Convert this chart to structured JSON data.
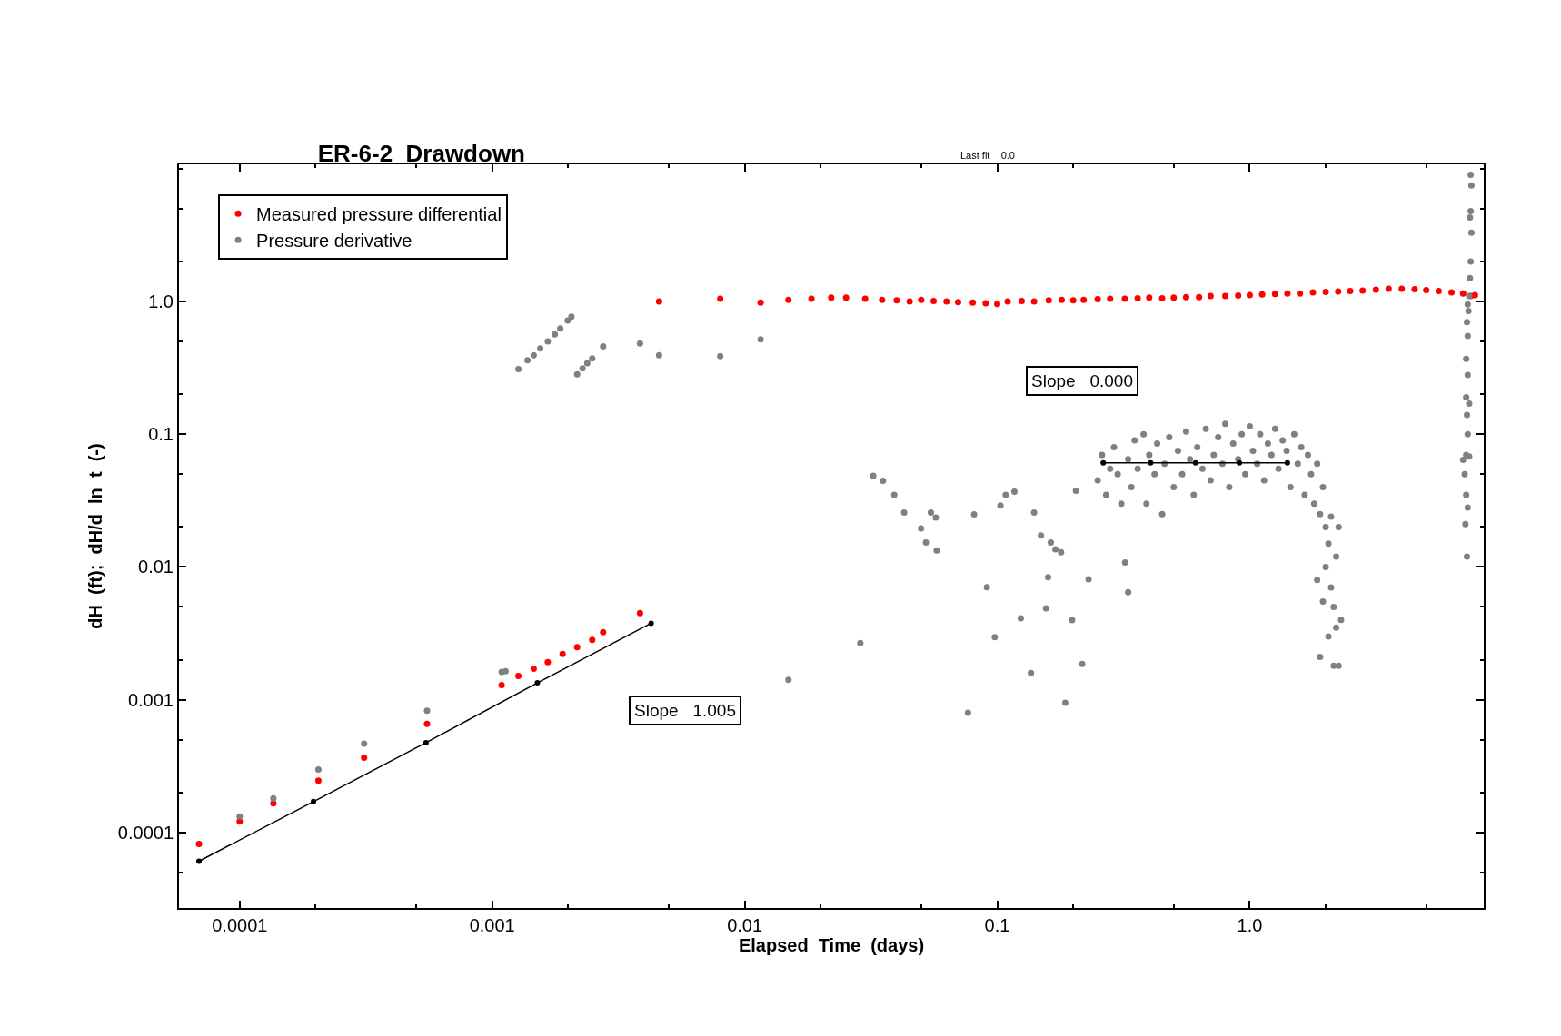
{
  "chart_data": {
    "type": "scatter",
    "title": "ER-6-2  Drawdown",
    "xlabel": "Elapsed  Time  (days)",
    "ylabel": "dH  (ft);  dH/d  ln  t  (-)",
    "log": "xy",
    "xlim": [
      5.75e-05,
      8.45
    ],
    "ylim": [
      2.7e-05,
      10.8
    ],
    "xticks": [
      0.0001,
      0.001,
      0.01,
      0.1,
      {
        "value": 1,
        "label": "1.0"
      }
    ],
    "yticks": [
      0.0001,
      0.001,
      0.01,
      0.1,
      {
        "value": 1,
        "label": "1.0"
      }
    ],
    "legend": "top left",
    "marker": "circle",
    "annotations": [
      "Last fit    0.0",
      "Slope   1.005",
      "Slope   0.000"
    ],
    "series": [
      {
        "name": "Measured pressure differential",
        "color": "#ff0000",
        "x": [
          6.9e-05,
          0.0001,
          0.000136,
          0.000205,
          0.000311,
          0.000552,
          0.00109,
          0.00127,
          0.00146,
          0.00166,
          0.0019,
          0.00217,
          0.00249,
          0.00275,
          0.00385,
          0.00458,
          0.008,
          0.01156,
          0.0149,
          0.01838,
          0.022,
          0.0252,
          0.03,
          0.035,
          0.04,
          0.045,
          0.05,
          0.056,
          0.063,
          0.07,
          0.08,
          0.09,
          0.1,
          0.11,
          0.125,
          0.14,
          0.16,
          0.18,
          0.2,
          0.22,
          0.25,
          0.28,
          0.32,
          0.36,
          0.4,
          0.45,
          0.5,
          0.56,
          0.63,
          0.7,
          0.8,
          0.9,
          1.0,
          1.12,
          1.26,
          1.41,
          1.58,
          1.78,
          2.0,
          2.24,
          2.5,
          2.8,
          3.16,
          3.55,
          4.0,
          4.5,
          5.0,
          5.6,
          6.3,
          7.0,
          7.5,
          7.8
        ],
        "values": [
          8.2e-05,
          0.000121,
          0.000166,
          0.000246,
          0.000366,
          0.000659,
          0.00129,
          0.00151,
          0.00171,
          0.00192,
          0.00221,
          0.00249,
          0.00282,
          0.00323,
          0.00449,
          1.0,
          1.05,
          0.98,
          1.03,
          1.05,
          1.07,
          1.07,
          1.05,
          1.03,
          1.02,
          1.0,
          1.03,
          1.01,
          1.0,
          0.99,
          0.98,
          0.97,
          0.96,
          1.0,
          1.01,
          1.0,
          1.02,
          1.03,
          1.02,
          1.03,
          1.04,
          1.05,
          1.05,
          1.06,
          1.07,
          1.06,
          1.07,
          1.08,
          1.08,
          1.1,
          1.1,
          1.11,
          1.12,
          1.13,
          1.14,
          1.15,
          1.15,
          1.17,
          1.18,
          1.19,
          1.2,
          1.21,
          1.23,
          1.25,
          1.25,
          1.24,
          1.22,
          1.2,
          1.17,
          1.15,
          1.1,
          1.12
        ]
      },
      {
        "name": "Pressure derivative",
        "color": "#808080",
        "x": [
          0.0001,
          0.000136,
          0.000205,
          0.000311,
          0.000552,
          0.00109,
          0.00113,
          0.00127,
          0.00138,
          0.00146,
          0.00155,
          0.00166,
          0.00177,
          0.00186,
          0.00199,
          0.00206,
          0.00217,
          0.00228,
          0.00238,
          0.00249,
          0.00275,
          0.00385,
          0.00458,
          0.008,
          0.01156,
          0.0149,
          0.0287,
          0.0323,
          0.0353,
          0.0391,
          0.0428,
          0.0499,
          0.0522,
          0.0546,
          0.0571,
          0.0576,
          0.0766,
          0.081,
          0.091,
          0.0978,
          0.103,
          0.108,
          0.117,
          0.124,
          0.136,
          0.14,
          0.149,
          0.156,
          0.159,
          0.163,
          0.17,
          0.179,
          0.186,
          0.198,
          0.205,
          0.217,
          0.23,
          0.321,
          0.33,
          0.25,
          0.26,
          0.27,
          0.28,
          0.29,
          0.3,
          0.31,
          0.33,
          0.34,
          0.35,
          0.36,
          0.38,
          0.39,
          0.4,
          0.42,
          0.43,
          0.45,
          0.46,
          0.48,
          0.5,
          0.52,
          0.54,
          0.56,
          0.58,
          0.6,
          0.62,
          0.65,
          0.67,
          0.7,
          0.72,
          0.75,
          0.78,
          0.8,
          0.83,
          0.86,
          0.9,
          0.93,
          0.96,
          1.0,
          1.03,
          1.07,
          1.1,
          1.14,
          1.18,
          1.22,
          1.26,
          1.3,
          1.35,
          1.4,
          1.45,
          1.5,
          1.55,
          1.6,
          1.65,
          1.7,
          1.75,
          1.8,
          1.85,
          1.9,
          1.95,
          2.0,
          2.05,
          2.1,
          2.0,
          2.1,
          1.95,
          2.15,
          2.2,
          2.05,
          1.9,
          2.15,
          2.25,
          2.3,
          1.85,
          2.2,
          2.25,
          7.5,
          7.55,
          7.5,
          7.45,
          7.55,
          7.5,
          7.45,
          7.4,
          7.3,
          7.35,
          7.25,
          7.3,
          7.2,
          7.3,
          7.2,
          7.4,
          7.25,
          7.3,
          7.0,
          7.2,
          7.4,
          7.1,
          7.2,
          7.3,
          7.15,
          7.25
        ],
        "values": [
          0.000132,
          0.000181,
          0.000298,
          0.000467,
          0.000826,
          0.00162,
          0.00164,
          0.31,
          0.361,
          0.394,
          0.444,
          0.5,
          0.565,
          0.627,
          0.72,
          0.77,
          0.283,
          0.314,
          0.343,
          0.373,
          0.46,
          0.484,
          0.394,
          0.387,
          0.519,
          0.00141,
          0.00267,
          0.0487,
          0.0447,
          0.035,
          0.0257,
          0.0195,
          0.0153,
          0.0257,
          0.0236,
          0.0133,
          0.000797,
          0.0249,
          0.00703,
          0.00296,
          0.029,
          0.035,
          0.0369,
          0.00411,
          0.00159,
          0.0257,
          0.0173,
          0.00489,
          0.00836,
          0.0153,
          0.0136,
          0.0129,
          0.000948,
          0.00398,
          0.0376,
          0.00186,
          0.00807,
          0.0108,
          0.00645,
          0.045,
          0.07,
          0.035,
          0.055,
          0.08,
          0.05,
          0.03,
          0.065,
          0.04,
          0.09,
          0.055,
          0.1,
          0.03,
          0.07,
          0.05,
          0.085,
          0.025,
          0.06,
          0.095,
          0.04,
          0.075,
          0.05,
          0.105,
          0.065,
          0.035,
          0.08,
          0.055,
          0.11,
          0.045,
          0.07,
          0.095,
          0.06,
          0.12,
          0.04,
          0.085,
          0.065,
          0.1,
          0.05,
          0.115,
          0.075,
          0.06,
          0.1,
          0.045,
          0.085,
          0.07,
          0.11,
          0.055,
          0.09,
          0.075,
          0.04,
          0.1,
          0.06,
          0.08,
          0.035,
          0.07,
          0.05,
          0.03,
          0.06,
          0.025,
          0.04,
          0.02,
          0.015,
          0.024,
          0.01,
          0.007,
          0.0055,
          0.005,
          0.0035,
          0.003,
          0.0021,
          0.0018,
          0.0018,
          0.004,
          0.008,
          0.012,
          0.02,
          9.0,
          7.5,
          4.8,
          4.3,
          3.3,
          2.0,
          1.5,
          1.1,
          0.95,
          0.85,
          0.7,
          0.55,
          0.37,
          0.28,
          0.19,
          0.17,
          0.14,
          0.1,
          0.064,
          0.07,
          0.068,
          0.05,
          0.035,
          0.028,
          0.021,
          0.012
        ]
      },
      {
        "type": "line",
        "color": "#000000",
        "x": [
          6.9e-05,
          0.000196,
          0.000547,
          0.00151,
          0.00426
        ],
        "values": [
          6.08e-05,
          0.000171,
          0.000475,
          0.00134,
          0.00377
        ]
      },
      {
        "type": "line",
        "color": "#000000",
        "x": [
          0.263,
          0.405,
          0.61,
          0.91,
          1.41
        ],
        "values": [
          0.061,
          0.061,
          0.061,
          0.061,
          0.061
        ]
      }
    ]
  }
}
